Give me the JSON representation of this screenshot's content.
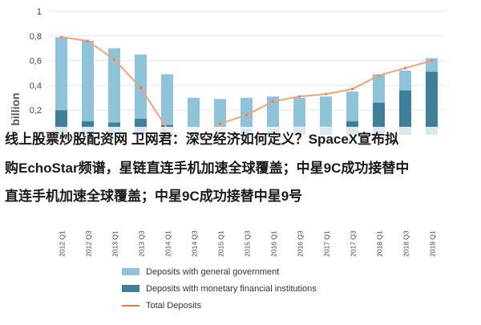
{
  "chart_data": {
    "type": "bar",
    "title": "",
    "ylabel": "€ billion",
    "xlabel": "",
    "ylim": [
      0,
      1.0
    ],
    "yticks": [
      0,
      0.2,
      0.4,
      0.6,
      0.8,
      1
    ],
    "ytick_labels": [
      "0",
      "0,2",
      "0,4",
      "0,6",
      "0,8",
      "1"
    ],
    "categories": [
      "2012 Q1",
      "2012 Q3",
      "2013 Q1",
      "2013 Q3",
      "2014 Q1",
      "2014 Q3",
      "2015 Q1",
      "2015 Q3",
      "2016 Q1",
      "2016 Q3",
      "2017 Q1",
      "2017 Q3",
      "2018 Q1",
      "2018 Q3",
      "2019 Q1"
    ],
    "series": [
      {
        "name": "Deposits with general government",
        "color": "#8fc3d9",
        "kind": "bar-stack",
        "values": [
          0.59,
          0.65,
          0.6,
          0.52,
          0.41,
          0.29,
          0.26,
          0.25,
          0.26,
          0.24,
          0.25,
          0.24,
          0.23,
          0.16,
          0.11
        ]
      },
      {
        "name": "Deposits with monetary financial institutions",
        "color": "#3f7f99",
        "kind": "bar-stack",
        "values": [
          0.2,
          0.11,
          0.1,
          0.13,
          0.08,
          0.01,
          0.03,
          0.05,
          0.05,
          0.06,
          0.06,
          0.11,
          0.26,
          0.36,
          0.51
        ]
      },
      {
        "name": "Total Deposits",
        "color": "#f0a37a",
        "kind": "line",
        "values": [
          0.79,
          0.76,
          0.61,
          0.38,
          0.05,
          -0.05,
          0.09,
          0.16,
          0.27,
          0.31,
          0.33,
          0.37,
          0.48,
          0.54,
          0.6
        ]
      }
    ],
    "legend": "bottom-left",
    "grid": true
  },
  "overlay": {
    "line1": "线上股票炒股配资网 卫网君：深空经济如何定义？SpaceX宣布拟",
    "line2": "购EchoStar频谱，星链直连手机加速全球覆盖；中星9C成功接替中",
    "line3": "直连手机加速全球覆盖；中星9C成功接替中星9号"
  },
  "legend_items": [
    {
      "label": "Deposits with general government",
      "color": "#8fc3d9",
      "kind": "box"
    },
    {
      "label": "Deposits with monetary financial institutions",
      "color": "#3f7f99",
      "kind": "box"
    },
    {
      "label": "Total Deposits",
      "color": "#e8804a",
      "kind": "line"
    }
  ]
}
